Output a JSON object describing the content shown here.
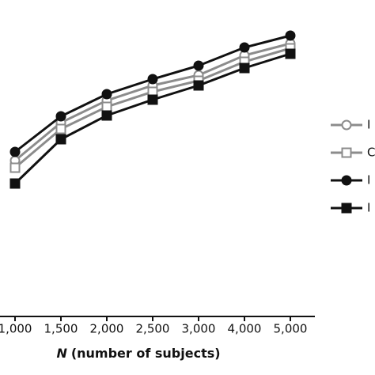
{
  "chart_data": {
    "type": "line",
    "categories": [
      "1,000",
      "1,500",
      "2,000",
      "2,500",
      "3,000",
      "4,000",
      "5,000"
    ],
    "series": [
      {
        "name": "I",
        "color": "#8c8c8c",
        "marker": "circle",
        "filled": false,
        "values": [
          197,
          245,
          273,
          292,
          305,
          330,
          345
        ]
      },
      {
        "name": "C",
        "color": "#8c8c8c",
        "marker": "square",
        "filled": false,
        "values": [
          188,
          237,
          265,
          284,
          298,
          322,
          339
        ]
      },
      {
        "name": "I",
        "color": "#111111",
        "marker": "circle",
        "filled": true,
        "values": [
          208,
          253,
          281,
          300,
          317,
          340,
          355
        ]
      },
      {
        "name": "I",
        "color": "#111111",
        "marker": "square",
        "filled": true,
        "values": [
          168,
          224,
          254,
          274,
          292,
          314,
          332
        ]
      }
    ],
    "xlabel_var": "N",
    "xlabel": "(number of subjects)",
    "ylim": [
      0,
      400
    ]
  }
}
